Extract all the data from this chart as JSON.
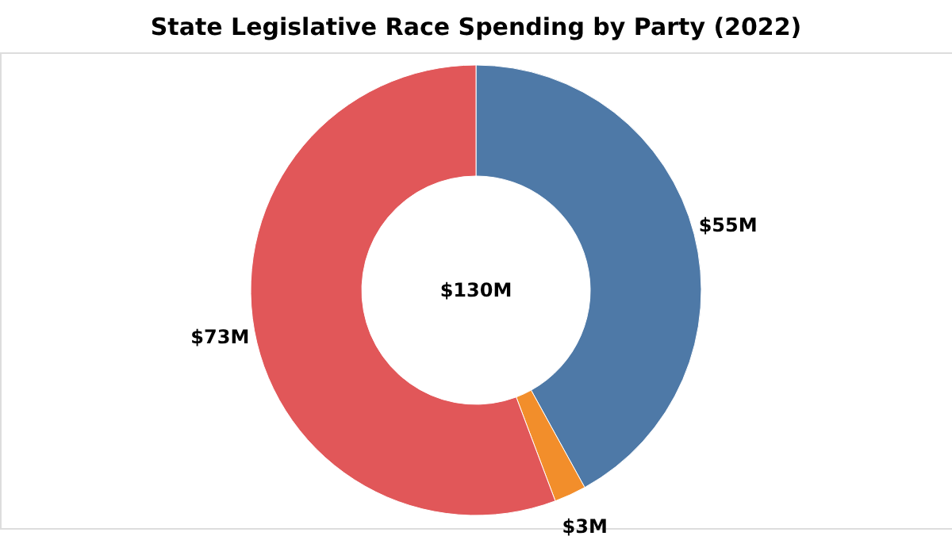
{
  "chart_data": {
    "type": "donut",
    "title": "State Legislative Race Spending by Party (2022)",
    "categories": [
      null,
      null,
      null
    ],
    "values": [
      55,
      3,
      73
    ],
    "colors": [
      "#4e79a7",
      "#f28e2b",
      "#e15759"
    ],
    "value_labels": [
      "$55M",
      "$3M",
      "$73M"
    ],
    "annotations": [
      "$130M"
    ],
    "legend": false
  }
}
